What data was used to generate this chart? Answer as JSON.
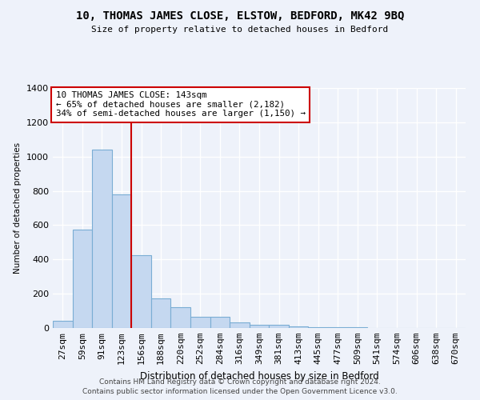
{
  "title": "10, THOMAS JAMES CLOSE, ELSTOW, BEDFORD, MK42 9BQ",
  "subtitle": "Size of property relative to detached houses in Bedford",
  "xlabel": "Distribution of detached houses by size in Bedford",
  "ylabel": "Number of detached properties",
  "categories": [
    "27sqm",
    "59sqm",
    "91sqm",
    "123sqm",
    "156sqm",
    "188sqm",
    "220sqm",
    "252sqm",
    "284sqm",
    "316sqm",
    "349sqm",
    "381sqm",
    "413sqm",
    "445sqm",
    "477sqm",
    "509sqm",
    "541sqm",
    "574sqm",
    "606sqm",
    "638sqm",
    "670sqm"
  ],
  "values": [
    40,
    575,
    1040,
    780,
    425,
    175,
    120,
    65,
    65,
    35,
    20,
    20,
    10,
    5,
    5,
    3,
    2,
    2,
    1,
    1,
    0
  ],
  "bar_color": "#c5d8f0",
  "bar_edge_color": "#7aadd4",
  "vline_x": 3.5,
  "annotation_text": "10 THOMAS JAMES CLOSE: 143sqm\n← 65% of detached houses are smaller (2,182)\n34% of semi-detached houses are larger (1,150) →",
  "annotation_box_color": "#ffffff",
  "annotation_box_edge_color": "#cc0000",
  "vline_color": "#cc0000",
  "ylim": [
    0,
    1400
  ],
  "footer1": "Contains HM Land Registry data © Crown copyright and database right 2024.",
  "footer2": "Contains public sector information licensed under the Open Government Licence v3.0.",
  "bg_color": "#eef2fa",
  "grid_color": "#ffffff"
}
